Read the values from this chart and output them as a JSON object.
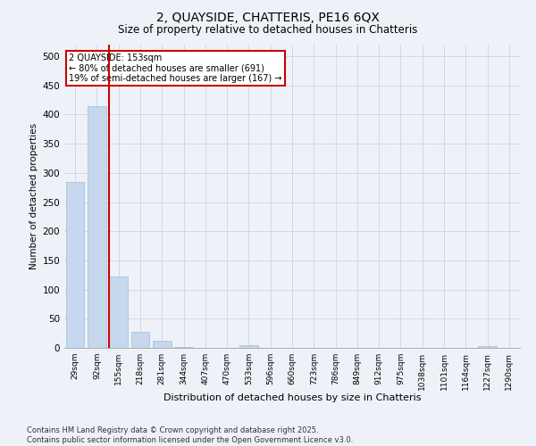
{
  "title": "2, QUAYSIDE, CHATTERIS, PE16 6QX",
  "subtitle": "Size of property relative to detached houses in Chatteris",
  "xlabel": "Distribution of detached houses by size in Chatteris",
  "ylabel": "Number of detached properties",
  "categories": [
    "29sqm",
    "92sqm",
    "155sqm",
    "218sqm",
    "281sqm",
    "344sqm",
    "407sqm",
    "470sqm",
    "533sqm",
    "596sqm",
    "660sqm",
    "723sqm",
    "786sqm",
    "849sqm",
    "912sqm",
    "975sqm",
    "1038sqm",
    "1101sqm",
    "1164sqm",
    "1227sqm",
    "1290sqm"
  ],
  "values": [
    285,
    415,
    122,
    28,
    13,
    2,
    0,
    0,
    4,
    0,
    0,
    0,
    0,
    0,
    0,
    0,
    0,
    0,
    0,
    3,
    0
  ],
  "bar_color": "#c5d8ed",
  "bar_edge_color": "#a0bcd8",
  "grid_color": "#d0d8e8",
  "background_color": "#eef2f8",
  "annotation_text": "2 QUAYSIDE: 153sqm\n← 80% of detached houses are smaller (691)\n19% of semi-detached houses are larger (167) →",
  "annotation_box_color": "#ffffff",
  "annotation_border_color": "#cc0000",
  "vline_color": "#cc0000",
  "vline_x_index": 2,
  "footer_text": "Contains HM Land Registry data © Crown copyright and database right 2025.\nContains public sector information licensed under the Open Government Licence v3.0.",
  "ylim": [
    0,
    520
  ],
  "yticks": [
    0,
    50,
    100,
    150,
    200,
    250,
    300,
    350,
    400,
    450,
    500
  ]
}
